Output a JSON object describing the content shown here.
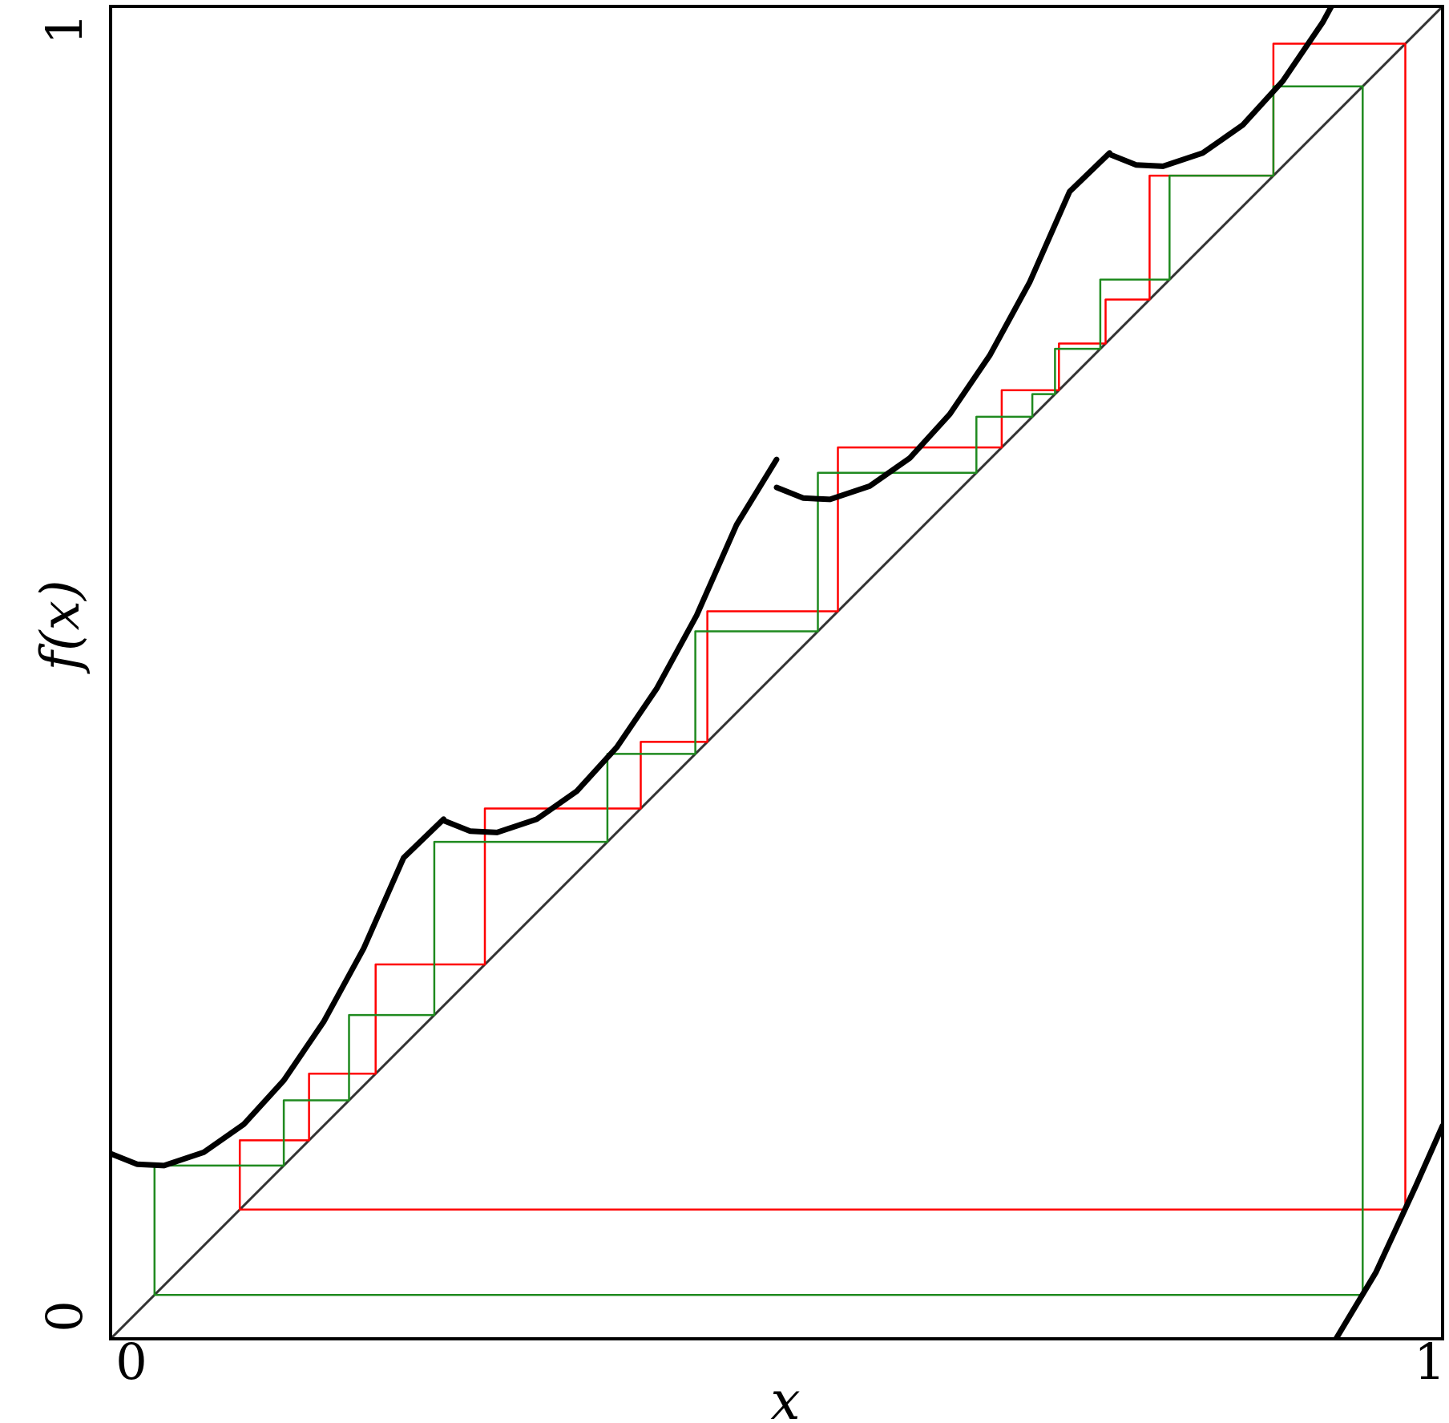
{
  "chart_data": {
    "type": "line",
    "xlabel": "x",
    "ylabel": "f(x)",
    "xlim": [
      0,
      1
    ],
    "ylim": [
      0,
      1
    ],
    "x_ticks": [
      {
        "value": 0,
        "label": "0"
      },
      {
        "value": 1,
        "label": "1"
      }
    ],
    "y_ticks": [
      {
        "value": 0,
        "label": "0"
      },
      {
        "value": 1,
        "label": "1"
      }
    ],
    "grid": false,
    "legend": "none",
    "colors": {
      "curve": "#000000",
      "identity": "#333333",
      "orbit_red": "#ff0000",
      "orbit_green": "#1f8a1f",
      "frame": "#000000"
    },
    "map_branches": [
      {
        "x": [
          0.0,
          0.02,
          0.04,
          0.07,
          0.1,
          0.13,
          0.16,
          0.19,
          0.22,
          0.25
        ],
        "y": [
          0.139,
          0.131,
          0.13,
          0.14,
          0.161,
          0.194,
          0.238,
          0.293,
          0.361,
          0.39
        ]
      },
      {
        "x": [
          0.25,
          0.27,
          0.29,
          0.32,
          0.35,
          0.38,
          0.41,
          0.44,
          0.47,
          0.5
        ],
        "y": [
          0.389,
          0.381,
          0.38,
          0.39,
          0.411,
          0.444,
          0.488,
          0.543,
          0.611,
          0.66
        ]
      },
      {
        "x": [
          0.5,
          0.52,
          0.54,
          0.57,
          0.6,
          0.63,
          0.66,
          0.69,
          0.72,
          0.75
        ],
        "y": [
          0.639,
          0.631,
          0.63,
          0.64,
          0.661,
          0.694,
          0.738,
          0.793,
          0.861,
          0.89
        ]
      },
      {
        "x": [
          0.75,
          0.77,
          0.79,
          0.82,
          0.85,
          0.88,
          0.91,
          0.94,
          0.97,
          1.0
        ],
        "y": [
          0.889,
          0.881,
          0.88,
          0.89,
          0.911,
          0.944,
          0.988,
          1.043,
          1.111,
          1.15
        ]
      },
      {
        "x": [
          0.92,
          0.95,
          0.98,
          1.0
        ],
        "y": [
          0.0,
          0.05,
          0.115,
          0.16
        ]
      }
    ],
    "identity_line": {
      "x": [
        0,
        1
      ],
      "y": [
        0,
        1
      ]
    },
    "orbits": [
      {
        "color": "orbit_red",
        "x": [
          0.972,
          0.972,
          0.097,
          0.097,
          0.149,
          0.149,
          0.199,
          0.199,
          0.281,
          0.281,
          0.398,
          0.398,
          0.448,
          0.448,
          0.546,
          0.546,
          0.669,
          0.669,
          0.712,
          0.712,
          0.747,
          0.747,
          0.78,
          0.78,
          0.873,
          0.873,
          0.972
        ],
        "y": [
          0.972,
          0.097,
          0.097,
          0.149,
          0.149,
          0.199,
          0.199,
          0.281,
          0.281,
          0.398,
          0.398,
          0.448,
          0.448,
          0.546,
          0.546,
          0.669,
          0.669,
          0.712,
          0.712,
          0.747,
          0.747,
          0.78,
          0.78,
          0.873,
          0.873,
          0.972,
          0.972
        ]
      },
      {
        "color": "orbit_green",
        "x": [
          0.94,
          0.94,
          0.033,
          0.033,
          0.13,
          0.13,
          0.179,
          0.179,
          0.243,
          0.243,
          0.373,
          0.373,
          0.439,
          0.439,
          0.531,
          0.531,
          0.65,
          0.65,
          0.692,
          0.692,
          0.709,
          0.709,
          0.743,
          0.743,
          0.795,
          0.795,
          0.873,
          0.873,
          0.94
        ],
        "y": [
          0.94,
          0.033,
          0.033,
          0.13,
          0.13,
          0.179,
          0.179,
          0.243,
          0.243,
          0.373,
          0.373,
          0.439,
          0.439,
          0.531,
          0.531,
          0.65,
          0.65,
          0.692,
          0.692,
          0.709,
          0.709,
          0.743,
          0.743,
          0.795,
          0.795,
          0.873,
          0.873,
          0.94,
          0.94
        ]
      }
    ]
  }
}
